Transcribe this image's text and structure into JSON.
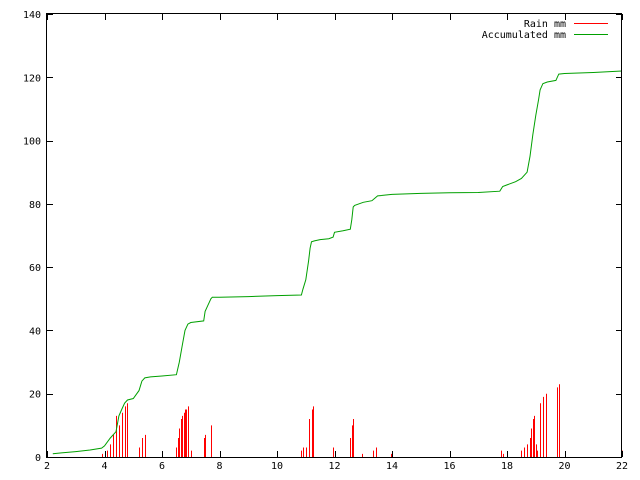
{
  "chart_data": {
    "type": "bar+line",
    "title": "",
    "xlabel": "",
    "ylabel": "",
    "xlim": [
      2,
      22
    ],
    "ylim": [
      0,
      140
    ],
    "xticks": [
      2,
      4,
      6,
      8,
      10,
      12,
      14,
      16,
      18,
      20,
      22
    ],
    "yticks": [
      0,
      20,
      40,
      60,
      80,
      100,
      120,
      140
    ],
    "xtick_labels": [
      "2",
      "4",
      "6",
      "8",
      "10",
      "12",
      "14",
      "16",
      "18",
      "20",
      "22"
    ],
    "ytick_labels": [
      "0",
      "20",
      "40",
      "60",
      "80",
      "100",
      "120",
      "140"
    ],
    "grid": false,
    "legend_position": "top-right",
    "series": [
      {
        "name": "Rain mm",
        "kind": "impulses",
        "color": "#ff0000",
        "x": [
          3.9,
          4.1,
          4.2,
          4.3,
          4.4,
          4.5,
          4.6,
          4.7,
          4.8,
          5.2,
          5.3,
          5.4,
          6.5,
          6.55,
          6.6,
          6.65,
          6.7,
          6.75,
          6.8,
          6.85,
          6.9,
          7.0,
          7.45,
          7.5,
          7.7,
          10.85,
          10.9,
          11.0,
          11.1,
          11.2,
          11.25,
          11.95,
          12.55,
          12.6,
          12.65,
          12.95,
          13.35,
          13.45,
          13.95,
          17.8,
          17.85,
          18.5,
          18.6,
          18.7,
          18.8,
          18.85,
          18.9,
          18.95,
          19.0,
          19.05,
          19.15,
          19.25,
          19.35,
          19.75,
          19.8,
          22.0
        ],
        "values": [
          1,
          2,
          4,
          7,
          13,
          10,
          14,
          16,
          17,
          3,
          6,
          7,
          3,
          6,
          9,
          12,
          13,
          14,
          15,
          15,
          16,
          2,
          6,
          7,
          10,
          2,
          3,
          3,
          12,
          15,
          16,
          3,
          6,
          10,
          12,
          1,
          2,
          3,
          1,
          2,
          1,
          2,
          3,
          4,
          6,
          9,
          12,
          13,
          4,
          2,
          17,
          19,
          20,
          22,
          23,
          2
        ]
      },
      {
        "name": "Accumulated mm",
        "kind": "line",
        "color": "#00a000",
        "x": [
          2.2,
          2.5,
          3.0,
          3.5,
          3.9,
          4.0,
          4.2,
          4.4,
          4.5,
          4.6,
          4.7,
          4.8,
          5.0,
          5.2,
          5.3,
          5.4,
          5.6,
          6.0,
          6.5,
          6.6,
          6.7,
          6.8,
          6.9,
          7.0,
          7.45,
          7.5,
          7.6,
          7.7,
          7.75,
          8.0,
          9.0,
          10.0,
          10.85,
          10.9,
          11.0,
          11.1,
          11.15,
          11.2,
          11.3,
          11.5,
          11.8,
          11.95,
          12.0,
          12.3,
          12.55,
          12.6,
          12.65,
          12.7,
          13.0,
          13.3,
          13.4,
          13.5,
          14.0,
          15.0,
          16.0,
          17.0,
          17.75,
          17.85,
          18.0,
          18.3,
          18.5,
          18.7,
          18.8,
          18.9,
          19.0,
          19.1,
          19.15,
          19.25,
          19.4,
          19.7,
          19.75,
          19.8,
          20.0,
          21.0,
          22.0
        ],
        "values": [
          1,
          1.3,
          1.7,
          2.2,
          2.8,
          3.5,
          6,
          8,
          13,
          15,
          17,
          18,
          18.5,
          21,
          24,
          25,
          25.3,
          25.6,
          26,
          30,
          35,
          40,
          42,
          42.5,
          43,
          46,
          48,
          50,
          50.5,
          50.5,
          50.7,
          51,
          51.2,
          53,
          56,
          62,
          66,
          68,
          68.3,
          68.7,
          69,
          69.5,
          71,
          71.5,
          72,
          75,
          79,
          79.5,
          80.5,
          81,
          81.8,
          82.5,
          83,
          83.3,
          83.5,
          83.6,
          84,
          85.5,
          86,
          87,
          88,
          90,
          95,
          102,
          108,
          113,
          116,
          118,
          118.5,
          119,
          120,
          121,
          121.2,
          121.5,
          122
        ]
      }
    ]
  }
}
